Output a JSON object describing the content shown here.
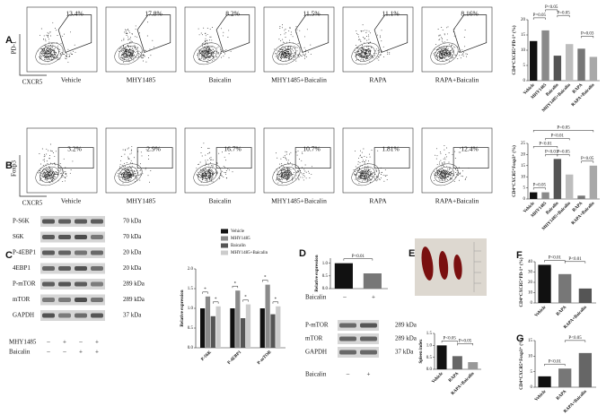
{
  "panel_letters": [
    "A",
    "B",
    "C",
    "D",
    "E",
    "F",
    "G"
  ],
  "flow_cytometry": [
    {
      "y_axis": "PD-1",
      "x_axis": "CXCR5",
      "plots": [
        {
          "label": "Vehicle",
          "percent": "13.4%"
        },
        {
          "label": "MHY1485",
          "percent": "17.8%"
        },
        {
          "label": "Baicalin",
          "percent": "8.2%"
        },
        {
          "label": "MHY1485+Baicalin",
          "percent": "11.5%"
        },
        {
          "label": "RAPA",
          "percent": "11.1%"
        },
        {
          "label": "RAPA+Baicalin",
          "percent": "8.16%"
        }
      ]
    },
    {
      "y_axis": "Foxp3",
      "x_axis": "CXCR5",
      "plots": [
        {
          "label": "Vehicle",
          "percent": "3.2%"
        },
        {
          "label": "MHY1485",
          "percent": "2.9%"
        },
        {
          "label": "Baicalin",
          "percent": "16.7%"
        },
        {
          "label": "MHY1485+Baicalin",
          "percent": "10.7%"
        },
        {
          "label": "RAPA",
          "percent": "1.81%"
        },
        {
          "label": "RAPA+Baicalin",
          "percent": "12.4%"
        }
      ]
    }
  ],
  "western_blots": [
    {
      "bands": [
        {
          "name": "P-S6K",
          "size": "70 kDa"
        },
        {
          "name": "S6K",
          "size": "70 kDa"
        },
        {
          "name": "P-4EBP1",
          "size": "20 kDa"
        },
        {
          "name": "4EBP1",
          "size": "20 kDa"
        },
        {
          "name": "P-mTOR",
          "size": "289 kDa"
        },
        {
          "name": "mTOR",
          "size": "289 kDa"
        },
        {
          "name": "GAPDH",
          "size": "37 kDa"
        }
      ],
      "treatments": [
        {
          "name": "MHY1485",
          "marks": [
            "–",
            "+",
            "–",
            "+"
          ]
        },
        {
          "name": "Baicalin",
          "marks": [
            "–",
            "–",
            "+",
            "+"
          ]
        }
      ]
    },
    {
      "bands": [
        {
          "name": "P-mTOR",
          "size": "289 kDa"
        },
        {
          "name": "mTOR",
          "size": "289 kDa"
        },
        {
          "name": "GAPDH",
          "size": "37 kDa"
        }
      ],
      "treatments": [
        {
          "name": "Baicalin",
          "marks": [
            "–",
            "+"
          ]
        }
      ]
    }
  ],
  "chart_data": [
    {
      "type": "bar",
      "y_label": "CD4⁺CXCR5⁺PD-1⁺ (%)",
      "categories": [
        "Vehicle",
        "MHY1485",
        "Baicalin",
        "MHY1485+Baicalin",
        "RAPA",
        "RAPA+Baicalin"
      ],
      "values": [
        13,
        16.5,
        8.2,
        12,
        10.5,
        7.8
      ],
      "colors": [
        "#111111",
        "#8a8a8a",
        "#555555",
        "#bdbdbd",
        "#777777",
        "#a8a8a8"
      ],
      "ylim": [
        0,
        20
      ],
      "yticks": [
        0,
        5,
        10,
        15,
        20
      ],
      "annotations": [
        "P=0.05",
        "P<0.05",
        "P=0.05",
        "P<0.05",
        "P=0.05",
        "P=0.03"
      ]
    },
    {
      "type": "bar",
      "y_label": "CD4⁺CXCR5⁺Foxp3⁺ (%)",
      "categories": [
        "Vehicle",
        "MHY1485",
        "Baicalin",
        "MHY1485+Baicalin",
        "RAPA",
        "RAPA+Baicalin"
      ],
      "values": [
        3,
        3,
        18,
        11,
        1.5,
        15
      ],
      "colors": [
        "#111111",
        "#8a8a8a",
        "#555555",
        "#bdbdbd",
        "#777777",
        "#a8a8a8"
      ],
      "ylim": [
        0,
        25
      ],
      "yticks": [
        0,
        5,
        10,
        15,
        20,
        25
      ],
      "annotations": [
        "P=0.05",
        "P<0.01",
        "P<0.01",
        "P<0.01",
        "P=0.05",
        "P=0.05",
        "P<0.05"
      ]
    },
    {
      "type": "bar",
      "y_label": "Relative expression",
      "categories": [
        "P-S6K",
        "P-4EBP1",
        "P-mTOR"
      ],
      "series": [
        {
          "name": "Vehicle",
          "color": "#111111",
          "values": [
            1,
            1,
            1
          ]
        },
        {
          "name": "MHY1485",
          "color": "#8a8a8a",
          "values": [
            1.3,
            1.45,
            1.6
          ]
        },
        {
          "name": "Baicalin",
          "color": "#555555",
          "values": [
            0.8,
            0.75,
            0.85
          ]
        },
        {
          "name": "MHY1485+Baicalin",
          "color": "#cccccc",
          "values": [
            1.05,
            1.1,
            1.05
          ]
        }
      ],
      "ylim": [
        0,
        2
      ],
      "yticks": [
        {
          "value": 0,
          "label": "0.0"
        },
        0.5,
        {
          "value": 1,
          "label": "1.0"
        },
        1.5,
        {
          "value": 2,
          "label": "2.0"
        }
      ],
      "annotations": [
        "*",
        "*",
        "*",
        "*",
        "*",
        "*"
      ]
    },
    {
      "type": "bar",
      "y_label": "Relative expression",
      "x_label": "Baicalin",
      "categories": [
        "–",
        "+"
      ],
      "values": [
        1,
        0.6
      ],
      "colors": [
        "#111111",
        "#777777"
      ],
      "ylim": [
        0,
        1.2
      ],
      "yticks": [
        {
          "value": 0,
          "label": "0.0"
        },
        0.5,
        {
          "value": 1,
          "label": "1.0"
        }
      ],
      "annotations": [
        "P<0.01"
      ]
    },
    {
      "type": "bar",
      "y_label": "Spleen index",
      "categories": [
        "Vehicle",
        "RAPA",
        "RAPA+Baicalin"
      ],
      "values": [
        1,
        0.55,
        0.3
      ],
      "colors": [
        "#111111",
        "#666666",
        "#999999"
      ],
      "ylim": [
        0,
        1.5
      ],
      "yticks": [
        {
          "value": 0,
          "label": "0.0"
        },
        0.5,
        {
          "value": 1,
          "label": "1.0"
        },
        1.5
      ],
      "annotations": [
        "P<0.05",
        "P=0.05"
      ]
    },
    {
      "type": "bar",
      "y_label": "CD4⁺CXCR5⁺PD-1⁺ (%)",
      "categories": [
        "Vehicle",
        "RAPA",
        "RAPA+Baicalin"
      ],
      "values": [
        37,
        28,
        14
      ],
      "colors": [
        "#111111",
        "#777777",
        "#555555"
      ],
      "ylim": [
        0,
        40
      ],
      "yticks": [
        0,
        10,
        20,
        30,
        40
      ],
      "annotations": [
        "P<0.01",
        "P<0.01"
      ]
    },
    {
      "type": "bar",
      "y_label": "CD4⁺CXCR5⁺Foxp3⁺ (%)",
      "categories": [
        "Vehicle",
        "RAPA",
        "RAPA+Baicalin"
      ],
      "values": [
        3.5,
        6,
        11
      ],
      "colors": [
        "#111111",
        "#777777",
        "#666666"
      ],
      "ylim": [
        0,
        15
      ],
      "yticks": [
        0,
        5,
        10,
        15
      ],
      "annotations": [
        "P<0.01",
        "P<0.05"
      ]
    }
  ]
}
